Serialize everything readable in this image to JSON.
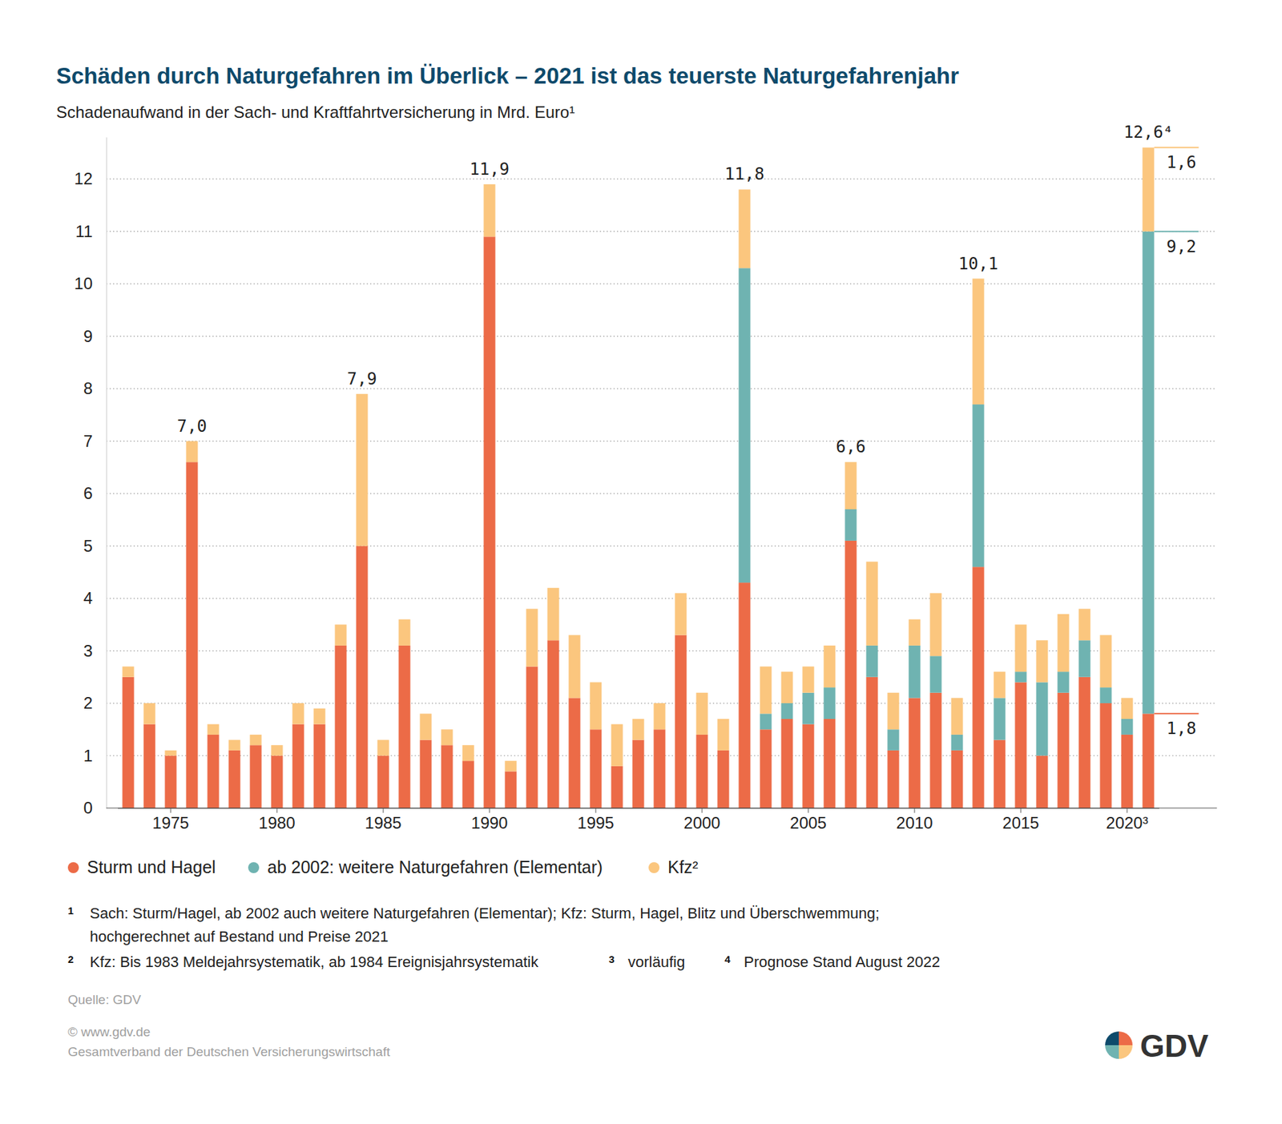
{
  "chart_data": {
    "type": "bar",
    "title": "Schäden durch Naturgefahren im Überlick – 2021 ist das teuerste Naturgefahrenjahr",
    "subtitle": "Schadenaufwand in der Sach- und Kraftfahrtversicherung in Mrd. Euro¹",
    "stacked": true,
    "grid": true,
    "legend": "bottom",
    "categories": [
      null,
      null,
      "1975",
      null,
      null,
      null,
      null,
      "1980",
      null,
      null,
      null,
      null,
      "1985",
      null,
      null,
      null,
      null,
      "1990",
      null,
      null,
      null,
      null,
      "1995",
      null,
      null,
      null,
      null,
      "2000",
      null,
      null,
      null,
      null,
      "2005",
      null,
      null,
      null,
      null,
      "2010",
      null,
      null,
      null,
      null,
      "2015",
      null,
      null,
      null,
      null,
      "2020³",
      null
    ],
    "series": [
      {
        "name": "Sturm und Hagel",
        "color": "#ec6b47",
        "values": [
          2.5,
          1.6,
          1.0,
          6.6,
          1.4,
          1.1,
          1.2,
          1.0,
          1.6,
          1.6,
          3.1,
          5.0,
          1.0,
          3.1,
          1.3,
          1.2,
          0.9,
          10.9,
          0.7,
          2.7,
          3.2,
          2.1,
          1.5,
          0.8,
          1.3,
          1.5,
          3.3,
          1.4,
          1.1,
          4.3,
          1.5,
          1.7,
          1.6,
          1.7,
          5.1,
          2.5,
          1.1,
          2.1,
          2.2,
          1.1,
          4.6,
          1.3,
          2.4,
          1.0,
          2.2,
          2.5,
          2.0,
          1.4,
          1.8
        ]
      },
      {
        "name": "ab 2002: weitere Naturgefahren (Elementar)",
        "color": "#6fb3b1",
        "values": [
          0,
          0,
          0,
          0,
          0,
          0,
          0,
          0,
          0,
          0,
          0,
          0,
          0,
          0,
          0,
          0,
          0,
          0,
          0,
          0,
          0,
          0,
          0,
          0,
          0,
          0,
          0,
          0,
          0,
          6.0,
          0.3,
          0.3,
          0.6,
          0.6,
          0.6,
          0.6,
          0.4,
          1.0,
          0.7,
          0.3,
          3.1,
          0.8,
          0.2,
          1.4,
          0.4,
          0.7,
          0.3,
          0.3,
          9.2
        ]
      },
      {
        "name": "Kfz²",
        "color": "#fbc67e",
        "values": [
          0.2,
          0.4,
          0.1,
          0.4,
          0.2,
          0.2,
          0.2,
          0.2,
          0.4,
          0.3,
          0.4,
          2.9,
          0.3,
          0.5,
          0.5,
          0.3,
          0.3,
          1.0,
          0.2,
          1.1,
          1.0,
          1.2,
          0.9,
          0.8,
          0.4,
          0.5,
          0.8,
          0.8,
          0.6,
          1.5,
          0.9,
          0.6,
          0.5,
          0.8,
          0.9,
          1.6,
          0.7,
          0.5,
          1.2,
          0.7,
          2.4,
          0.5,
          0.9,
          0.8,
          1.1,
          0.6,
          1.0,
          0.4,
          1.6
        ]
      }
    ],
    "ylim": [
      0,
      12.8
    ],
    "yticks": [
      0,
      1,
      2,
      3,
      4,
      5,
      6,
      7,
      8,
      9,
      10,
      11,
      12
    ],
    "annotations": [
      {
        "index": 3,
        "y": 7.0,
        "text": "7,0",
        "side": "top"
      },
      {
        "index": 11,
        "y": 7.9,
        "text": "7,9",
        "side": "top"
      },
      {
        "index": 17,
        "y": 11.9,
        "text": "11,9",
        "side": "top"
      },
      {
        "index": 29,
        "y": 11.8,
        "text": "11,8",
        "side": "top"
      },
      {
        "index": 34,
        "y": 6.6,
        "text": "6,6",
        "side": "top"
      },
      {
        "index": 40,
        "y": 10.1,
        "text": "10,1",
        "side": "top"
      },
      {
        "index": 48,
        "y": 12.6,
        "text": "12,6⁴",
        "side": "top"
      },
      {
        "index": 48,
        "y": 12.6,
        "text": "1,6",
        "side": "right",
        "color": "#fbc67e"
      },
      {
        "index": 48,
        "y": 11.0,
        "text": "9,2",
        "side": "right",
        "color": "#6fb3b1"
      },
      {
        "index": 48,
        "y": 1.8,
        "text": "1,8",
        "side": "right",
        "color": "#ec6b47"
      }
    ],
    "footnotes": [
      {
        "mark": "1",
        "lines": [
          "Sach: Sturm/Hagel, ab 2002 auch weitere Naturgefahren (Elementar); Kfz: Sturm, Hagel, Blitz und Überschwemmung;",
          "hochgerechnet auf Bestand und Preise 2021"
        ]
      },
      {
        "mark": "2",
        "lines": [
          "Kfz: Bis 1983 Meldejahrsystematik, ab 1984 Ereignisjahrsystematik"
        ]
      },
      {
        "mark": "3",
        "lines": [
          "vorläufig"
        ]
      },
      {
        "mark": "4",
        "lines": [
          "Prognose Stand August 2022"
        ]
      }
    ],
    "source": "Quelle: GDV",
    "copyright": "© www.gdv.de",
    "publisher": "Gesamtverband der Deutschen Versicherungswirtschaft",
    "logo_text": "GDV"
  }
}
